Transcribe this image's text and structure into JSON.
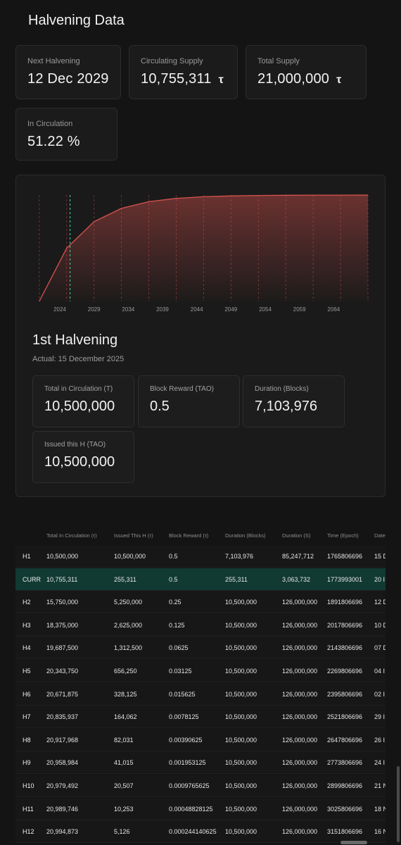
{
  "page": {
    "title": "Halvening Data"
  },
  "stats": {
    "next_halvening": {
      "label": "Next Halvening",
      "value": "12 Dec 2029"
    },
    "circulating_supply": {
      "label": "Circulating Supply",
      "value": "10,755,311",
      "unit": "τ"
    },
    "total_supply": {
      "label": "Total Supply",
      "value": "21,000,000",
      "unit": "τ"
    },
    "in_circulation": {
      "label": "In Circulation",
      "value": "51.22 %"
    }
  },
  "chart_data": {
    "type": "area",
    "x_ticks": [
      "2024",
      "2029",
      "2034",
      "2039",
      "2044",
      "2049",
      "2054",
      "2059",
      "2064"
    ],
    "x": [
      2021,
      2025,
      2029,
      2033,
      2037,
      2041,
      2045,
      2049,
      2053,
      2057,
      2061,
      2065,
      2069
    ],
    "y": [
      0,
      10500000,
      15750000,
      18375000,
      19687500,
      20343750,
      20671875,
      20835937,
      20917968,
      20958984,
      20979492,
      20989746,
      20994873
    ],
    "colors": {
      "line": "#d9534f",
      "current_marker": "#3fd6b4"
    }
  },
  "halvening": {
    "title": "1st Halvening",
    "subtitle": "Actual: 15 December 2025",
    "cards": {
      "total": {
        "label": "Total in Circulation (T)",
        "value": "10,500,000"
      },
      "reward": {
        "label": "Block Reward (TAO)",
        "value": "0.5"
      },
      "duration": {
        "label": "Duration (Blocks)",
        "value": "7,103,976"
      },
      "issued": {
        "label": "Issued this H (TAO)",
        "value": "10,500,000"
      }
    }
  },
  "table": {
    "headers": [
      "Total In Circulation (τ)",
      "Issued This H (τ)",
      "Block Reward (τ)",
      "Duration (Blocks)",
      "Duration (S)",
      "Time (Epoch)",
      "Date"
    ],
    "rows": [
      [
        "H1",
        "10,500,000",
        "10,500,000",
        "0.5",
        "7,103,976",
        "85,247,712",
        "1765806696",
        "15 D"
      ],
      [
        "CURR",
        "10,755,311",
        "255,311",
        "0.5",
        "255,311",
        "3,063,732",
        "1773993001",
        "20 I"
      ],
      [
        "H2",
        "15,750,000",
        "5,250,000",
        "0.25",
        "10,500,000",
        "126,000,000",
        "1891806696",
        "12 D"
      ],
      [
        "H3",
        "18,375,000",
        "2,625,000",
        "0.125",
        "10,500,000",
        "126,000,000",
        "2017806696",
        "10 D"
      ],
      [
        "H4",
        "19,687,500",
        "1,312,500",
        "0.0625",
        "10,500,000",
        "126,000,000",
        "2143806696",
        "07 D"
      ],
      [
        "H5",
        "20,343,750",
        "656,250",
        "0.03125",
        "10,500,000",
        "126,000,000",
        "2269806696",
        "04 I"
      ],
      [
        "H6",
        "20,671,875",
        "328,125",
        "0.015625",
        "10,500,000",
        "126,000,000",
        "2395806696",
        "02 I"
      ],
      [
        "H7",
        "20,835,937",
        "164,062",
        "0.0078125",
        "10,500,000",
        "126,000,000",
        "2521806696",
        "29 I"
      ],
      [
        "H8",
        "20,917,968",
        "82,031",
        "0.00390625",
        "10,500,000",
        "126,000,000",
        "2647806696",
        "26 I"
      ],
      [
        "H9",
        "20,958,984",
        "41,015",
        "0.001953125",
        "10,500,000",
        "126,000,000",
        "2773806696",
        "24 I"
      ],
      [
        "H10",
        "20,979,492",
        "20,507",
        "0.0009765625",
        "10,500,000",
        "126,000,000",
        "2899806696",
        "21 N"
      ],
      [
        "H11",
        "20,989,746",
        "10,253",
        "0.00048828125",
        "10,500,000",
        "126,000,000",
        "3025806696",
        "18 N"
      ],
      [
        "H12",
        "20,994,873",
        "5,126",
        "0.000244140625",
        "10,500,000",
        "126,000,000",
        "3151806696",
        "16 N"
      ]
    ]
  }
}
